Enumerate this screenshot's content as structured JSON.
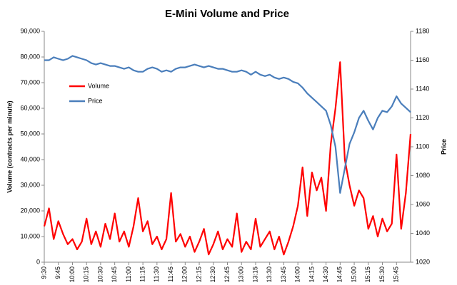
{
  "chart_data": {
    "type": "line",
    "title": "E-Mini Volume and Price",
    "ylabel": "Volume (contracts per minute)",
    "y2label": "Price",
    "categories": [
      "9:30",
      null,
      null,
      "9:45",
      null,
      null,
      "10:00",
      null,
      null,
      "10:15",
      null,
      null,
      "10:30",
      null,
      null,
      "10:45",
      null,
      null,
      "11:00",
      null,
      null,
      "11:15",
      null,
      null,
      "11:30",
      null,
      null,
      "11:45",
      null,
      null,
      "12:00",
      null,
      null,
      "12:15",
      null,
      null,
      "12:30",
      null,
      null,
      "12:45",
      null,
      null,
      "13:00",
      null,
      null,
      "13:15",
      null,
      null,
      "13:30",
      null,
      null,
      "13:45",
      null,
      null,
      "14:00",
      null,
      null,
      "14:15",
      null,
      null,
      "14:30",
      null,
      null,
      "14:45",
      null,
      null,
      "15:00",
      null,
      null,
      "15:15",
      null,
      null,
      "15:30",
      null,
      null,
      "15:45",
      null,
      null,
      null
    ],
    "series": [
      {
        "name": "Volume",
        "color": "#ff0000",
        "values": [
          14000,
          21000,
          9000,
          16000,
          11000,
          7000,
          9000,
          5000,
          8000,
          17000,
          7000,
          12000,
          6000,
          15000,
          9000,
          19000,
          8000,
          12000,
          6000,
          14000,
          25000,
          12000,
          16000,
          7000,
          10000,
          5000,
          9000,
          27000,
          8000,
          11000,
          6000,
          10000,
          4000,
          8000,
          13000,
          3000,
          7000,
          12000,
          5000,
          9000,
          6000,
          19000,
          4000,
          8000,
          5000,
          17000,
          6000,
          9000,
          12000,
          5000,
          10000,
          3000,
          8000,
          14000,
          22000,
          37000,
          18000,
          35000,
          28000,
          33000,
          20000,
          46000,
          60000,
          78000,
          40000,
          30000,
          22000,
          28000,
          25000,
          13000,
          18000,
          10000,
          17000,
          12000,
          15000,
          42000,
          13000,
          27000,
          50000
        ]
      },
      {
        "name": "Price",
        "color": "#4a7ebb",
        "axis": "y2",
        "values": [
          1160,
          1160,
          1162,
          1161,
          1160,
          1161,
          1163,
          1162,
          1161,
          1160,
          1158,
          1157,
          1158,
          1157,
          1156,
          1156,
          1155,
          1154,
          1155,
          1153,
          1152,
          1152,
          1154,
          1155,
          1154,
          1152,
          1153,
          1152,
          1154,
          1155,
          1155,
          1156,
          1157,
          1156,
          1155,
          1156,
          1155,
          1154,
          1154,
          1153,
          1152,
          1152,
          1153,
          1152,
          1150,
          1152,
          1150,
          1149,
          1150,
          1148,
          1147,
          1148,
          1147,
          1145,
          1144,
          1141,
          1137,
          1134,
          1131,
          1128,
          1125,
          1115,
          1100,
          1068,
          1085,
          1102,
          1110,
          1120,
          1125,
          1118,
          1112,
          1120,
          1125,
          1124,
          1128,
          1135,
          1130,
          1127,
          1124
        ]
      }
    ],
    "ylim": [
      0,
      90000
    ],
    "yticks": [
      0,
      {
        "value": 10000,
        "label": "10,000"
      },
      {
        "value": 20000,
        "label": "20,000"
      },
      {
        "value": 30000,
        "label": "30,000"
      },
      {
        "value": 40000,
        "label": "40,000"
      },
      {
        "value": 50000,
        "label": "50,000"
      },
      {
        "value": 60000,
        "label": "60,000"
      },
      {
        "value": 70000,
        "label": "70,000"
      },
      {
        "value": 80000,
        "label": "80,000"
      },
      {
        "value": 90000,
        "label": "90,000"
      }
    ],
    "y2lim": [
      1020,
      1180
    ],
    "y2ticks": [
      1020,
      1040,
      1060,
      1080,
      1100,
      1120,
      1140,
      1160,
      1180
    ],
    "legend": "upper left"
  }
}
